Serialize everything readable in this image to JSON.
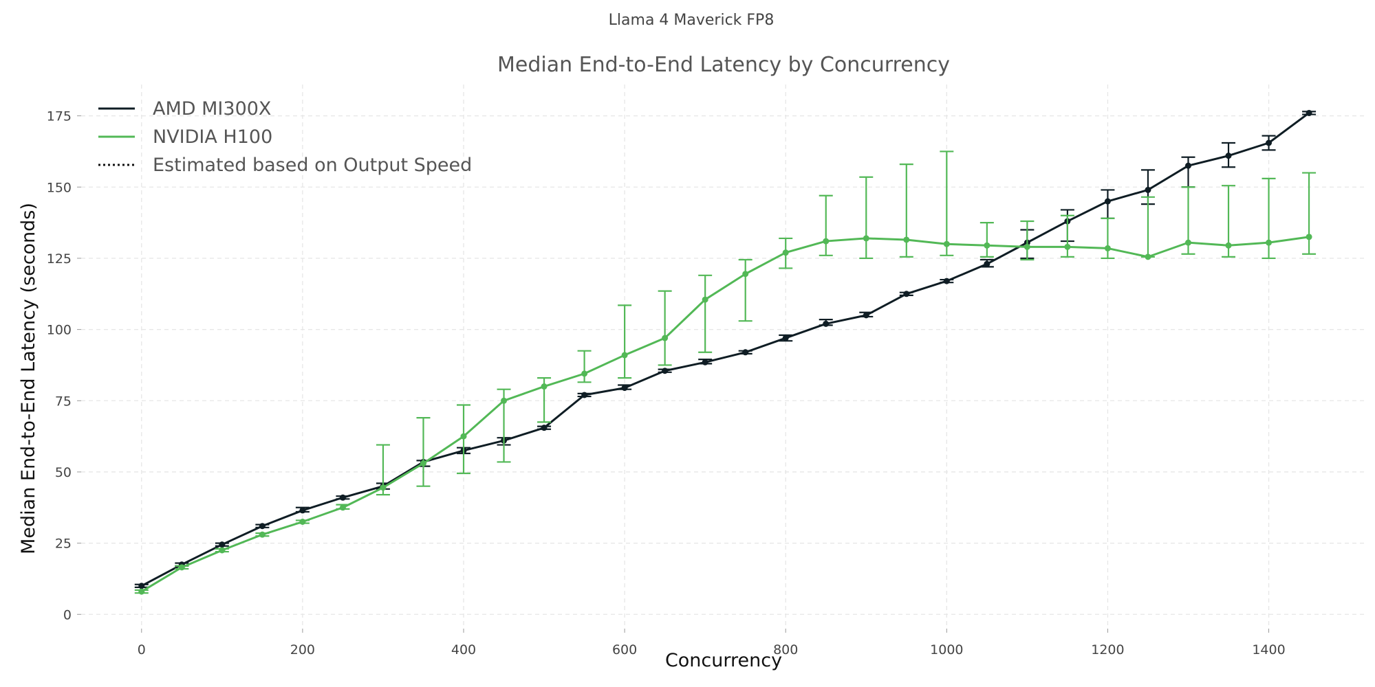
{
  "suptitle": "Llama 4 Maverick FP8",
  "chart_data": {
    "type": "line",
    "title": "Median End-to-End Latency by Concurrency",
    "xlabel": "Concurrency",
    "ylabel": "Median End-to-End Latency (seconds)",
    "xlim": [
      -75,
      1520
    ],
    "ylim": [
      -5,
      186
    ],
    "xticks": [
      0,
      200,
      400,
      600,
      800,
      1000,
      1200,
      1400
    ],
    "yticks": [
      0,
      25,
      50,
      75,
      100,
      125,
      150,
      175
    ],
    "grid": true,
    "legend_position": "top-left",
    "legend": [
      {
        "label": "AMD MI300X",
        "color": "#0f1d24",
        "style": "solid"
      },
      {
        "label": "NVIDIA H100",
        "color": "#52b856",
        "style": "solid"
      },
      {
        "label": "Estimated based on Output Speed",
        "color": "#111111",
        "style": "dotted"
      }
    ],
    "series": [
      {
        "name": "AMD MI300X",
        "color": "#0f1d24",
        "x": [
          0,
          50,
          100,
          150,
          200,
          250,
          300,
          350,
          400,
          450,
          500,
          550,
          600,
          650,
          700,
          750,
          800,
          850,
          900,
          950,
          1000,
          1050,
          1100,
          1150,
          1200,
          1250,
          1300,
          1350,
          1400,
          1450
        ],
        "y": [
          10,
          17.5,
          24.5,
          31,
          36.5,
          41,
          45,
          53.5,
          57.5,
          61,
          65.5,
          77,
          79.5,
          85.5,
          88.5,
          92,
          97,
          102,
          105,
          112.5,
          117,
          123,
          130.5,
          138,
          145,
          149,
          157.5,
          161,
          165.5,
          176
        ],
        "err_low": [
          9.5,
          17,
          24,
          30.5,
          36,
          40.5,
          44,
          52,
          56.5,
          59.5,
          65,
          76.5,
          79,
          85,
          88,
          91.5,
          96,
          101.5,
          104.5,
          112,
          116.5,
          122,
          125,
          131,
          139,
          144,
          150,
          157,
          163,
          175.5
        ],
        "err_high": [
          10.5,
          18,
          25,
          31.5,
          37.5,
          41.5,
          46,
          54,
          58.5,
          62,
          66,
          77.5,
          80.5,
          86,
          89.5,
          92.5,
          98,
          103.5,
          106,
          113,
          117.5,
          124.5,
          135,
          142,
          149,
          156,
          160.5,
          165.5,
          168,
          176.5
        ]
      },
      {
        "name": "NVIDIA H100",
        "color": "#52b856",
        "x": [
          0,
          50,
          100,
          150,
          200,
          250,
          300,
          350,
          400,
          450,
          500,
          550,
          600,
          650,
          700,
          750,
          800,
          850,
          900,
          950,
          1000,
          1050,
          1100,
          1150,
          1200,
          1250,
          1300,
          1350,
          1400,
          1450
        ],
        "y": [
          8,
          16.5,
          22.5,
          28,
          32.5,
          37.5,
          44.5,
          53,
          62.5,
          75,
          80,
          84.5,
          91,
          97,
          110.5,
          119.5,
          127,
          131,
          132,
          131.5,
          130,
          129.5,
          129,
          129,
          128.5,
          125.5,
          130.5,
          129.5,
          130.5,
          132.5
        ],
        "err_low": [
          7.5,
          16,
          22,
          27.5,
          32,
          37,
          42,
          45,
          49.5,
          53.5,
          67.5,
          81.5,
          83,
          87.5,
          92,
          103,
          121.5,
          126,
          125,
          125.5,
          126,
          125.5,
          124.5,
          125.5,
          125,
          125.5,
          126.5,
          125.5,
          125,
          126.5
        ],
        "err_high": [
          8.5,
          17,
          23,
          28.5,
          33,
          38.5,
          59.5,
          69,
          73.5,
          79,
          83,
          92.5,
          108.5,
          113.5,
          119,
          124.5,
          132,
          147,
          153.5,
          158,
          162.5,
          137.5,
          138,
          140,
          139,
          146.5,
          150,
          150.5,
          153,
          155
        ]
      }
    ]
  }
}
